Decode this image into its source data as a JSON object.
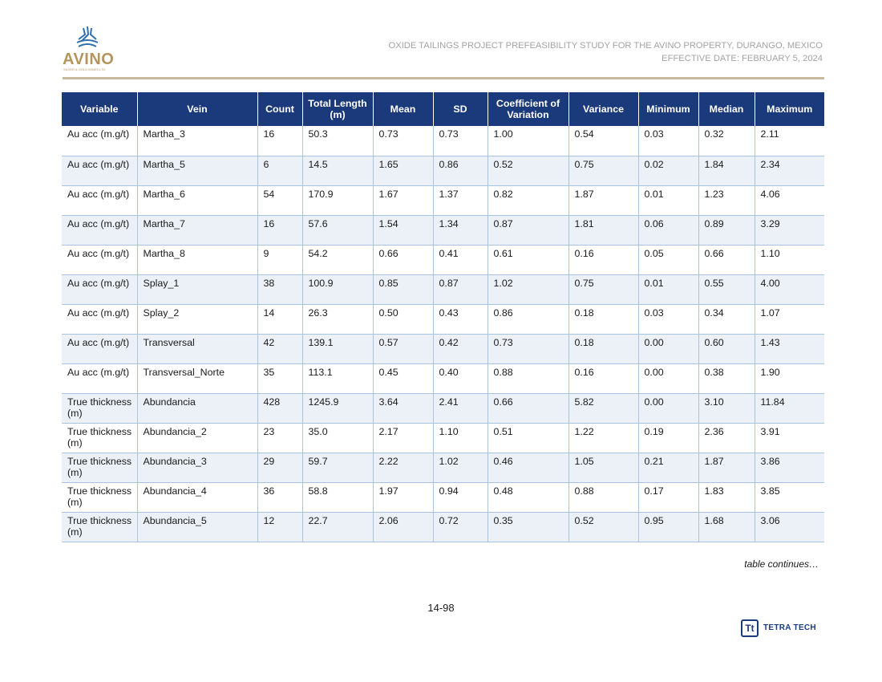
{
  "logo": {
    "name": "AVINO",
    "subtitle": "SILVER & GOLD MINES LTD."
  },
  "header": {
    "line1": "OXIDE TAILINGS PROJECT PREFEASIBILITY STUDY FOR THE AVINO PROPERTY, DURANGO, MEXICO",
    "line2": "EFFECTIVE DATE: FEBRUARY 5, 2024"
  },
  "table": {
    "columns": [
      "Variable",
      "Vein",
      "Count",
      "Total Length (m)",
      "Mean",
      "SD",
      "Coefficient of Variation",
      "Variance",
      "Minimum",
      "Median",
      "Maximum"
    ],
    "rows": [
      [
        "Au acc (m.g/t)",
        "Martha_3",
        "16",
        "50.3",
        "0.73",
        "0.73",
        "1.00",
        "0.54",
        "0.03",
        "0.32",
        "2.11"
      ],
      [
        "Au acc (m.g/t)",
        "Martha_5",
        "6",
        "14.5",
        "1.65",
        "0.86",
        "0.52",
        "0.75",
        "0.02",
        "1.84",
        "2.34"
      ],
      [
        "Au acc (m.g/t)",
        "Martha_6",
        "54",
        "170.9",
        "1.67",
        "1.37",
        "0.82",
        "1.87",
        "0.01",
        "1.23",
        "4.06"
      ],
      [
        "Au acc (m.g/t)",
        "Martha_7",
        "16",
        "57.6",
        "1.54",
        "1.34",
        "0.87",
        "1.81",
        "0.06",
        "0.89",
        "3.29"
      ],
      [
        "Au acc (m.g/t)",
        "Martha_8",
        "9",
        "54.2",
        "0.66",
        "0.41",
        "0.61",
        "0.16",
        "0.05",
        "0.66",
        "1.10"
      ],
      [
        "Au acc (m.g/t)",
        "Splay_1",
        "38",
        "100.9",
        "0.85",
        "0.87",
        "1.02",
        "0.75",
        "0.01",
        "0.55",
        "4.00"
      ],
      [
        "Au acc (m.g/t)",
        "Splay_2",
        "14",
        "26.3",
        "0.50",
        "0.43",
        "0.86",
        "0.18",
        "0.03",
        "0.34",
        "1.07"
      ],
      [
        "Au acc (m.g/t)",
        "Transversal",
        "42",
        "139.1",
        "0.57",
        "0.42",
        "0.73",
        "0.18",
        "0.00",
        "0.60",
        "1.43"
      ],
      [
        "Au acc (m.g/t)",
        "Transversal_Norte",
        "35",
        "113.1",
        "0.45",
        "0.40",
        "0.88",
        "0.16",
        "0.00",
        "0.38",
        "1.90"
      ],
      [
        "True thickness (m)",
        "Abundancia",
        "428",
        "1245.9",
        "3.64",
        "2.41",
        "0.66",
        "5.82",
        "0.00",
        "3.10",
        "11.84"
      ],
      [
        "True thickness (m)",
        "Abundancia_2",
        "23",
        "35.0",
        "2.17",
        "1.10",
        "0.51",
        "1.22",
        "0.19",
        "2.36",
        "3.91"
      ],
      [
        "True thickness (m)",
        "Abundancia_3",
        "29",
        "59.7",
        "2.22",
        "1.02",
        "0.46",
        "1.05",
        "0.21",
        "1.87",
        "3.86"
      ],
      [
        "True thickness (m)",
        "Abundancia_4",
        "36",
        "58.8",
        "1.97",
        "0.94",
        "0.48",
        "0.88",
        "0.17",
        "1.83",
        "3.85"
      ],
      [
        "True thickness (m)",
        "Abundancia_5",
        "12",
        "22.7",
        "2.06",
        "0.72",
        "0.35",
        "0.52",
        "0.95",
        "1.68",
        "3.06"
      ]
    ]
  },
  "continues": "table continues…",
  "page_number": "14-98",
  "footer_logo": {
    "mark": "Tt",
    "name": "TETRA TECH"
  },
  "colors": {
    "header_bg": "#1b3a7c",
    "row_alt": "#ebf1f6",
    "gold": "#b5955e",
    "rule": "#c8b99c"
  }
}
